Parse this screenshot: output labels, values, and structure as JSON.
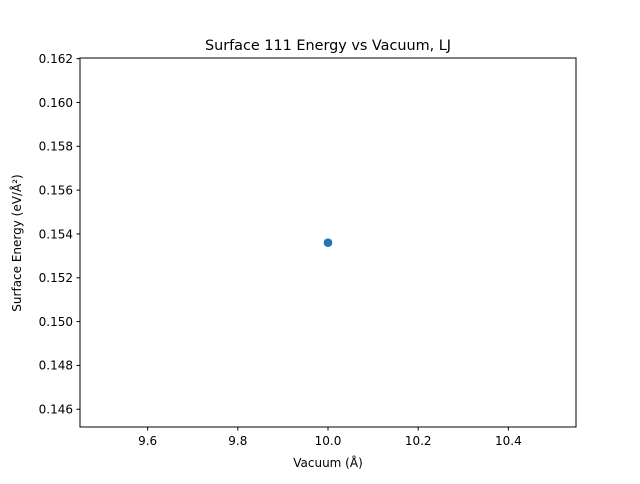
{
  "chart_data": {
    "type": "scatter",
    "title": "Surface 111 Energy vs Vacuum, LJ",
    "xlabel": "Vacuum (Å)",
    "ylabel": "Surface Energy (eV/Å²)",
    "xlim": [
      9.45,
      10.55
    ],
    "ylim": [
      0.14519,
      0.16203
    ],
    "xticks": [
      9.6,
      9.8,
      10.0,
      10.2,
      10.4
    ],
    "xtick_labels": [
      "9.6",
      "9.8",
      "10.0",
      "10.2",
      "10.4"
    ],
    "yticks": [
      0.146,
      0.148,
      0.15,
      0.152,
      0.154,
      0.156,
      0.158,
      0.16,
      0.162
    ],
    "ytick_labels": [
      "0.146",
      "0.148",
      "0.150",
      "0.152",
      "0.154",
      "0.156",
      "0.158",
      "0.160",
      "0.162"
    ],
    "grid": false,
    "series": [
      {
        "color": "#1f77b4",
        "marker": "circle",
        "points": [
          {
            "x": 10.0,
            "y": 0.1536
          }
        ]
      }
    ]
  }
}
